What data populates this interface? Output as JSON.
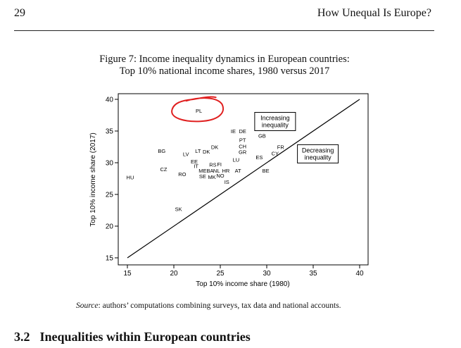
{
  "header": {
    "page_number": "29",
    "running_title": "How Unequal Is Europe?"
  },
  "figure": {
    "title_line1": "Figure 7: Income inequality dynamics in European countries:",
    "title_line2": "Top 10% national income shares, 1980 versus 2017"
  },
  "chart_data": {
    "type": "scatter",
    "xlabel": "Top 10% income share (1980)",
    "ylabel": "Top 10% income share (2017)",
    "xlim": [
      15,
      40
    ],
    "ylim": [
      15,
      40
    ],
    "xticks": [
      15,
      20,
      25,
      30,
      35,
      40
    ],
    "yticks": [
      15,
      20,
      25,
      30,
      35,
      40
    ],
    "grid": false,
    "reference_line": {
      "from": [
        15,
        15
      ],
      "to": [
        40,
        40
      ]
    },
    "annotations": [
      {
        "text_lines": [
          "Increasing",
          "inequality"
        ],
        "x": 30.9,
        "y": 36.5
      },
      {
        "text_lines": [
          "Decreasing",
          "inequality"
        ],
        "x": 35.5,
        "y": 31.4
      }
    ],
    "highlight": {
      "label": "PL",
      "color": "#e02020"
    },
    "points": [
      {
        "label": "PL",
        "x": 22.7,
        "y": 38.2
      },
      {
        "label": "IE",
        "x": 26.4,
        "y": 35.0
      },
      {
        "label": "DE",
        "x": 27.4,
        "y": 35.0
      },
      {
        "label": "GB",
        "x": 29.5,
        "y": 34.3
      },
      {
        "label": "PT",
        "x": 27.4,
        "y": 33.6
      },
      {
        "label": "FR",
        "x": 31.5,
        "y": 32.5
      },
      {
        "label": "CH",
        "x": 27.4,
        "y": 32.6
      },
      {
        "label": "CY",
        "x": 30.9,
        "y": 31.5
      },
      {
        "label": "DK",
        "x": 24.4,
        "y": 32.5
      },
      {
        "label": "GR",
        "x": 27.4,
        "y": 31.7
      },
      {
        "label": "BG",
        "x": 18.7,
        "y": 31.9
      },
      {
        "label": "LT",
        "x": 22.6,
        "y": 31.9
      },
      {
        "label": "DK",
        "x": 23.5,
        "y": 31.8
      },
      {
        "label": "LV",
        "x": 21.3,
        "y": 31.4
      },
      {
        "label": "ES",
        "x": 29.2,
        "y": 30.9
      },
      {
        "label": "LU",
        "x": 26.7,
        "y": 30.5
      },
      {
        "label": "EE",
        "x": 22.2,
        "y": 30.2
      },
      {
        "label": "RS",
        "x": 24.2,
        "y": 29.7
      },
      {
        "label": "FI",
        "x": 24.9,
        "y": 29.8
      },
      {
        "label": "IT",
        "x": 22.4,
        "y": 29.5
      },
      {
        "label": "BE",
        "x": 29.9,
        "y": 28.8
      },
      {
        "label": "ME",
        "x": 23.1,
        "y": 28.8
      },
      {
        "label": "BA",
        "x": 23.9,
        "y": 28.8
      },
      {
        "label": "NL",
        "x": 24.6,
        "y": 28.8
      },
      {
        "label": "HR",
        "x": 25.6,
        "y": 28.8
      },
      {
        "label": "AT",
        "x": 26.9,
        "y": 28.8
      },
      {
        "label": "CZ",
        "x": 18.9,
        "y": 29.0
      },
      {
        "label": "RO",
        "x": 20.9,
        "y": 28.2
      },
      {
        "label": "SE",
        "x": 23.1,
        "y": 27.9
      },
      {
        "label": "MK",
        "x": 24.1,
        "y": 27.8
      },
      {
        "label": "NO",
        "x": 25.0,
        "y": 28.0
      },
      {
        "label": "HU",
        "x": 15.3,
        "y": 27.7
      },
      {
        "label": "IS",
        "x": 25.7,
        "y": 27.0
      },
      {
        "label": "SK",
        "x": 20.5,
        "y": 22.7
      }
    ]
  },
  "source_note": {
    "label": "Source",
    "text": ": authors’ computations combining surveys, tax data and national accounts."
  },
  "section": {
    "number": "3.2",
    "title": "Inequalities within European countries"
  }
}
